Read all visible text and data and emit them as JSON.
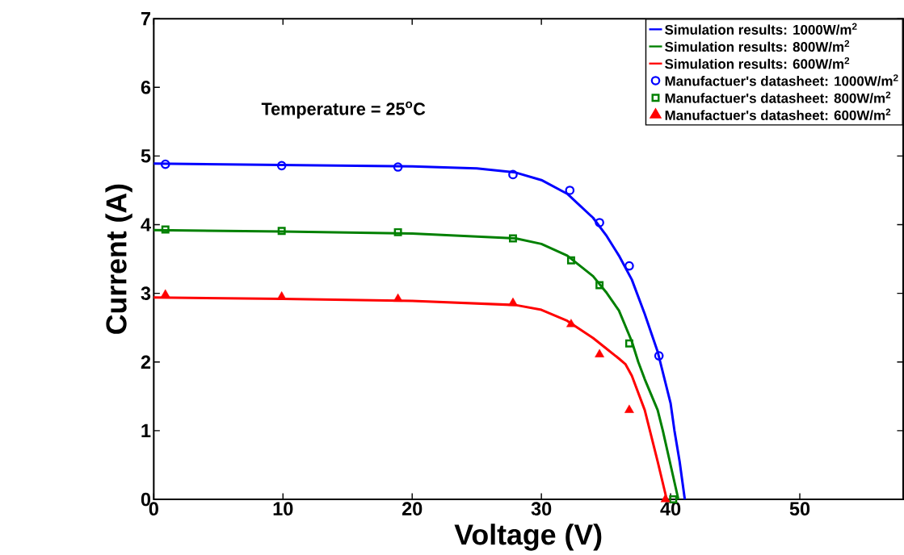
{
  "chart_data": {
    "type": "line",
    "xlabel": "Voltage (V)",
    "ylabel": "Current (A)",
    "annotations": [
      "Temperature = 25$^{o}$C"
    ],
    "xlim": [
      0,
      58
    ],
    "ylim": [
      0,
      7
    ],
    "xticks": [
      0,
      10,
      20,
      30,
      40,
      50
    ],
    "yticks": [
      0,
      1,
      2,
      3,
      4,
      5,
      6,
      7
    ],
    "grid": false,
    "legend": "top right",
    "series": [
      {
        "name": "Simulation results: 1000W/m$^{2}$",
        "type": "line",
        "marker": "none",
        "color": "#0000ff",
        "x": [
          0,
          10,
          20,
          25,
          28,
          30,
          32,
          34,
          35,
          36,
          37,
          38,
          39,
          40,
          40.3,
          40.7,
          41.1
        ],
        "values": [
          4.89,
          4.87,
          4.85,
          4.82,
          4.76,
          4.65,
          4.45,
          4.1,
          3.85,
          3.55,
          3.2,
          2.7,
          2.15,
          1.4,
          1.0,
          0.55,
          0
        ]
      },
      {
        "name": "Simulation results: 800W/m$^{2}$",
        "type": "line",
        "marker": "none",
        "color": "#008000",
        "x": [
          0,
          10,
          20,
          28,
          30,
          32,
          34,
          35,
          36,
          37,
          37.5,
          38,
          39,
          39.4,
          40,
          40.6
        ],
        "values": [
          3.92,
          3.9,
          3.87,
          3.8,
          3.72,
          3.55,
          3.25,
          3.02,
          2.75,
          2.3,
          2.0,
          1.75,
          1.3,
          1.0,
          0.5,
          0
        ]
      },
      {
        "name": "Simulation results: 600W/m$^{2}$",
        "type": "line",
        "marker": "none",
        "color": "#ff0000",
        "x": [
          0,
          10,
          20,
          28,
          30,
          32,
          34,
          35,
          36,
          36.5,
          37,
          38,
          38.4,
          39,
          39.7
        ],
        "values": [
          2.94,
          2.92,
          2.89,
          2.83,
          2.76,
          2.6,
          2.35,
          2.2,
          2.05,
          1.97,
          1.8,
          1.3,
          1.0,
          0.55,
          0
        ]
      },
      {
        "name": "Manufactuer's datasheet: 1000W/m$^{2}$",
        "type": "scatter",
        "marker": "circle",
        "color": "#0000ff",
        "x": [
          0.9,
          9.9,
          18.9,
          27.8,
          32.2,
          34.5,
          36.8,
          39.1
        ],
        "values": [
          4.88,
          4.86,
          4.84,
          4.73,
          4.5,
          4.03,
          3.4,
          2.09
        ]
      },
      {
        "name": "Manufactuer's datasheet: 800W/m$^{2}$",
        "type": "scatter",
        "marker": "square",
        "color": "#008000",
        "x": [
          0.9,
          9.9,
          18.9,
          27.8,
          32.3,
          34.5,
          36.8,
          40.2
        ],
        "values": [
          3.93,
          3.91,
          3.89,
          3.8,
          3.48,
          3.12,
          2.27,
          0
        ]
      },
      {
        "name": "Manufactuer's datasheet: 600W/m$^{2}$",
        "type": "scatter",
        "marker": "triangle",
        "color": "#ff0000",
        "x": [
          0.9,
          9.9,
          18.9,
          27.8,
          32.3,
          34.5,
          36.8,
          39.6
        ],
        "values": [
          2.98,
          2.95,
          2.92,
          2.86,
          2.55,
          2.11,
          1.3,
          0
        ]
      }
    ]
  }
}
